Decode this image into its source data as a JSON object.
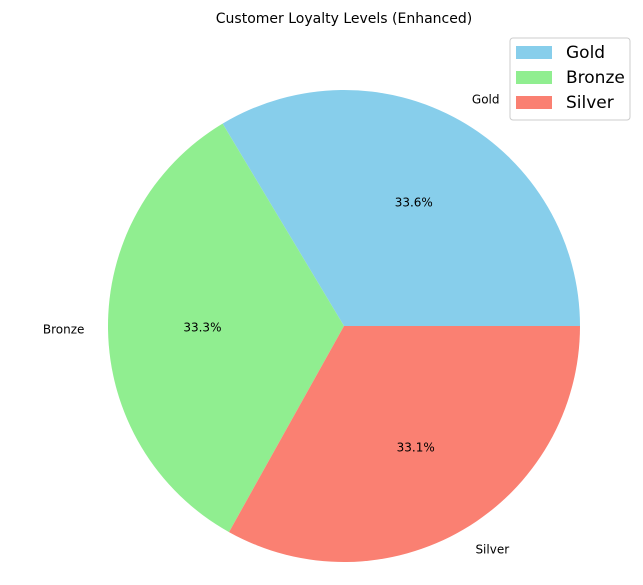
{
  "chart_data": {
    "type": "pie",
    "title": "Customer Loyalty Levels (Enhanced)",
    "categories": [
      "Gold",
      "Bronze",
      "Silver"
    ],
    "values": [
      33.6,
      33.3,
      33.1
    ],
    "percent_labels": [
      "33.6%",
      "33.3%",
      "33.1%"
    ],
    "colors": [
      "#87CEEB",
      "#90EE90",
      "#FA8072"
    ],
    "start_angle_deg": 0,
    "direction": "counterclockwise",
    "legend": {
      "placement": "top-right",
      "entries": [
        "Gold",
        "Bronze",
        "Silver"
      ]
    }
  }
}
